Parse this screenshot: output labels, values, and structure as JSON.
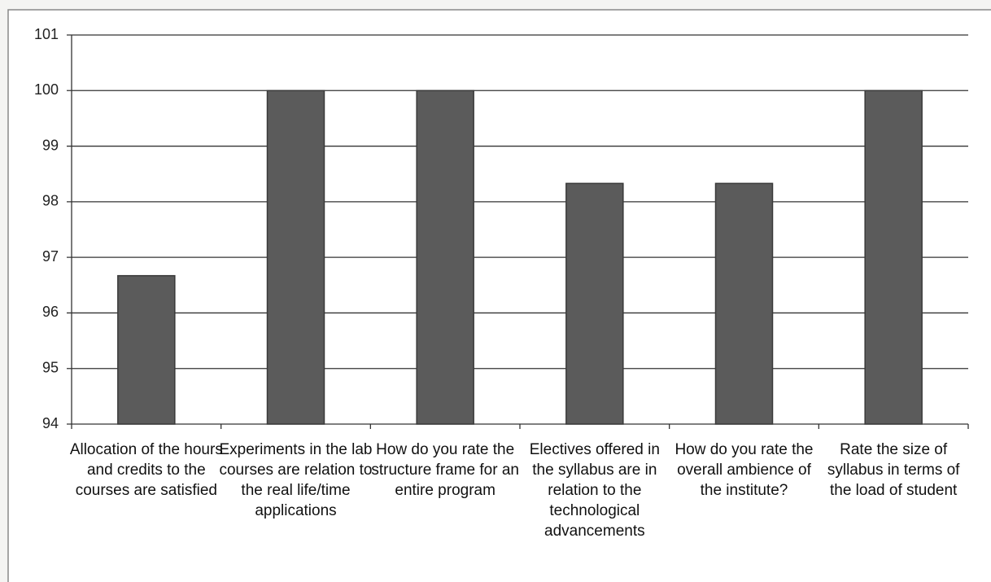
{
  "chart_data": {
    "type": "bar",
    "categories": [
      "Allocation of the hours and credits to the courses are satisfied",
      "Experiments in the lab courses are relation to the real life/time applications",
      "How do you rate the structure frame for an entire program",
      "Electives offered in the syllabus are in relation to the technological advancements",
      "How do you rate the overall ambience of the institute?",
      "Rate the size of syllabus in terms of the load of student"
    ],
    "values": [
      96.67,
      100,
      100,
      98.33,
      98.33,
      100
    ],
    "color": "#5b5b5b",
    "ylim": [
      94,
      101
    ],
    "yticks": [
      94,
      95,
      96,
      97,
      98,
      99,
      100,
      101
    ],
    "grid": true
  }
}
